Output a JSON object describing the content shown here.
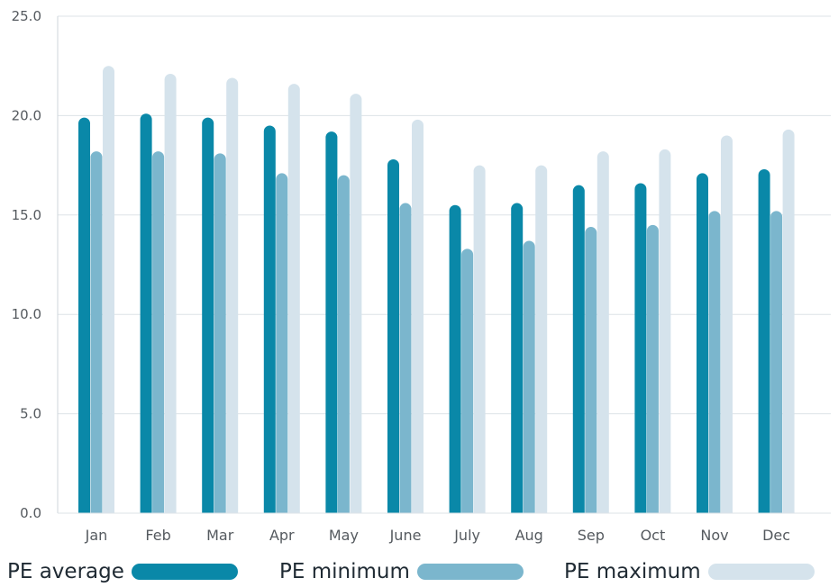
{
  "chart_data": {
    "type": "bar",
    "categories": [
      "Jan",
      "Feb",
      "Mar",
      "Apr",
      "May",
      "June",
      "July",
      "Aug",
      "Sep",
      "Oct",
      "Nov",
      "Dec"
    ],
    "series": [
      {
        "name": "PE average",
        "color": "#0a88a8",
        "values": [
          19.9,
          20.1,
          19.9,
          19.5,
          19.2,
          17.8,
          15.5,
          15.6,
          16.5,
          16.6,
          17.1,
          17.3
        ]
      },
      {
        "name": "PE minimum",
        "color": "#7bb6cd",
        "values": [
          18.2,
          18.2,
          18.1,
          17.1,
          17.0,
          15.6,
          13.3,
          13.7,
          14.4,
          14.5,
          15.2,
          15.2
        ]
      },
      {
        "name": "PE maximum",
        "color": "#d5e3ec",
        "values": [
          22.5,
          22.1,
          21.9,
          21.6,
          21.1,
          19.8,
          17.5,
          17.5,
          18.2,
          18.3,
          19.0,
          19.3
        ]
      }
    ],
    "ylim": [
      0,
      25
    ],
    "yticks": [
      "0.0",
      "5.0",
      "10.0",
      "15.0",
      "20.0",
      "25.0"
    ],
    "grid": true,
    "legend_position": "bottom"
  }
}
